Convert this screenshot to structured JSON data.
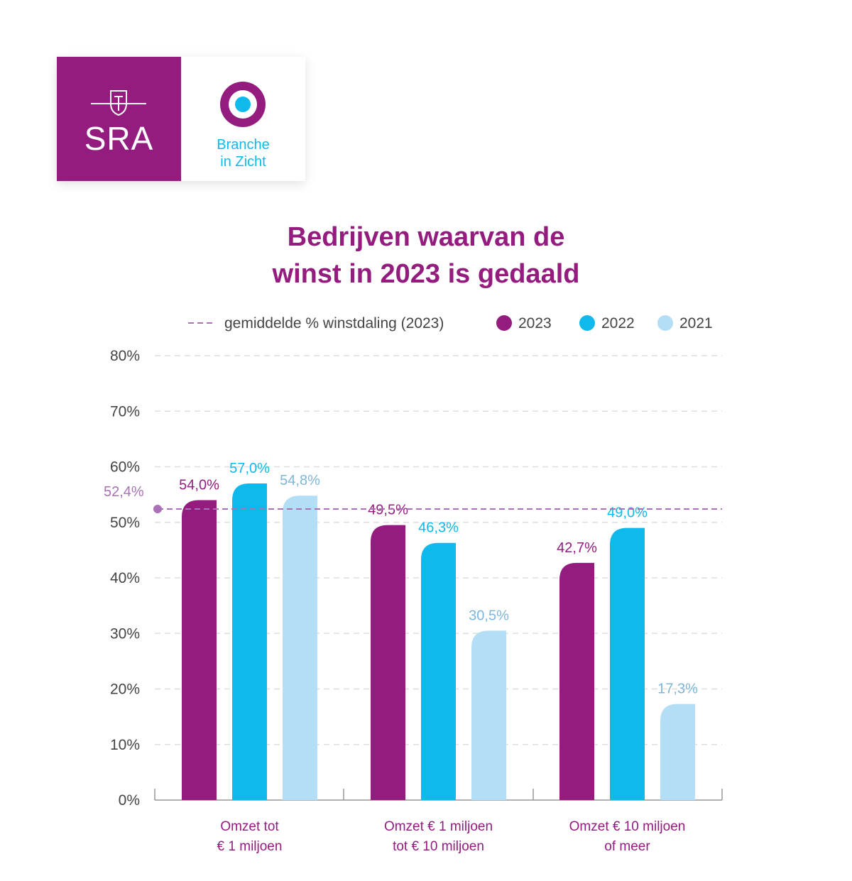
{
  "logo": {
    "left_text": "SRA",
    "right_line1": "Branche",
    "right_line2": "in Zicht",
    "colors": {
      "purple": "#931c7e",
      "cyan": "#0fb9ec"
    }
  },
  "chart_data": {
    "type": "bar",
    "title_line1": "Bedrijven waarvan de",
    "title_line2": "winst in 2023 is gedaald",
    "categories": [
      [
        "Omzet tot",
        "€ 1 miljoen"
      ],
      [
        "Omzet € 1 miljoen",
        "tot € 10 miljoen"
      ],
      [
        "Omzet € 10 miljoen",
        "of meer"
      ]
    ],
    "series": [
      {
        "name": "2023",
        "color": "#931c7e",
        "label_color": "#931c7e",
        "values": [
          54.0,
          49.5,
          42.7
        ],
        "labels": [
          "54,0%",
          "49,5%",
          "42,7%"
        ]
      },
      {
        "name": "2022",
        "color": "#0fb9ec",
        "label_color": "#0fb9ec",
        "values": [
          57.0,
          46.3,
          49.0
        ],
        "labels": [
          "57,0%",
          "46,3%",
          "49,0%"
        ]
      },
      {
        "name": "2021",
        "color": "#b3def6",
        "label_color": "#7fb6d8",
        "values": [
          54.8,
          30.5,
          17.3
        ],
        "labels": [
          "54,8%",
          "30,5%",
          "17,3%"
        ]
      }
    ],
    "average_line": {
      "label": "gemiddelde % winstdaling (2023)",
      "value": 52.4,
      "value_label": "52,4%",
      "color": "#a972b6"
    },
    "yticks": [
      {
        "value": 0,
        "label": "0%"
      },
      {
        "value": 10,
        "label": "10%"
      },
      {
        "value": 20,
        "label": "20%"
      },
      {
        "value": 30,
        "label": "30%"
      },
      {
        "value": 40,
        "label": "40%"
      },
      {
        "value": 50,
        "label": "50%"
      },
      {
        "value": 60,
        "label": "60%"
      },
      {
        "value": 70,
        "label": "70%"
      },
      {
        "value": 80,
        "label": "80%"
      }
    ],
    "ylim": [
      0,
      80
    ],
    "grid": true,
    "legend_position": "top-right"
  }
}
